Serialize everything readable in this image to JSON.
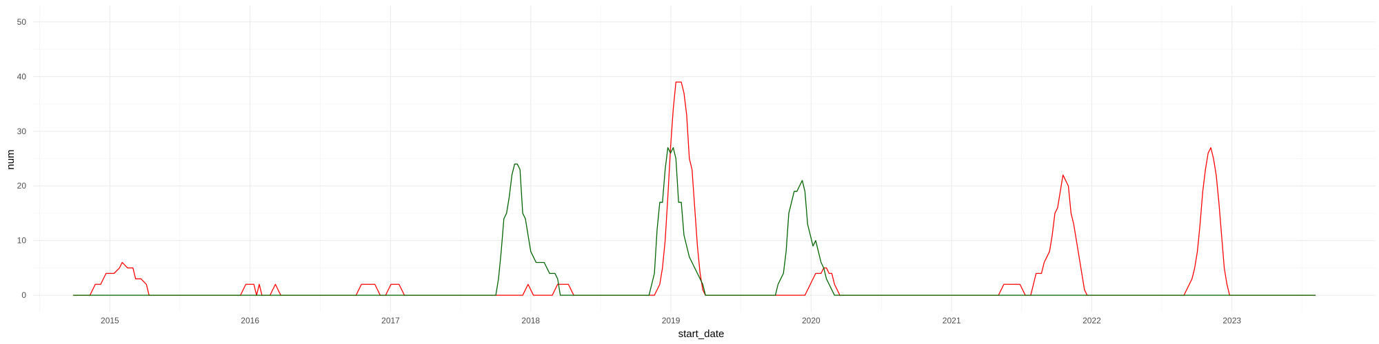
{
  "chart_data": {
    "type": "line",
    "title": "",
    "xlabel": "start_date",
    "ylabel": "num",
    "x_axis_type": "date",
    "xlim": [
      "2014-06-15",
      "2024-01-10"
    ],
    "ylim": [
      -3,
      53
    ],
    "x_ticks": [
      "2015",
      "2016",
      "2017",
      "2018",
      "2019",
      "2020",
      "2021",
      "2022",
      "2023"
    ],
    "y_ticks": [
      0,
      10,
      20,
      30,
      40,
      50
    ],
    "grid": true,
    "legend": "none",
    "series": [
      {
        "color": "#ff0000",
        "points": [
          [
            "2014-09-28",
            0
          ],
          [
            "2014-11-10",
            0
          ],
          [
            "2014-11-24",
            2
          ],
          [
            "2014-12-08",
            2
          ],
          [
            "2014-12-22",
            4
          ],
          [
            "2015-01-12",
            4
          ],
          [
            "2015-01-26",
            5
          ],
          [
            "2015-02-02",
            6
          ],
          [
            "2015-02-16",
            5
          ],
          [
            "2015-03-02",
            5
          ],
          [
            "2015-03-09",
            3
          ],
          [
            "2015-03-23",
            3
          ],
          [
            "2015-04-06",
            2
          ],
          [
            "2015-04-13",
            0
          ],
          [
            "2015-12-07",
            0
          ],
          [
            "2015-12-21",
            2
          ],
          [
            "2016-01-11",
            2
          ],
          [
            "2016-01-18",
            0
          ],
          [
            "2016-01-25",
            2
          ],
          [
            "2016-02-01",
            0
          ],
          [
            "2016-02-22",
            0
          ],
          [
            "2016-03-07",
            2
          ],
          [
            "2016-03-21",
            0
          ],
          [
            "2016-10-03",
            0
          ],
          [
            "2016-10-17",
            2
          ],
          [
            "2016-11-21",
            2
          ],
          [
            "2016-12-05",
            0
          ],
          [
            "2016-12-19",
            0
          ],
          [
            "2017-01-02",
            2
          ],
          [
            "2017-01-23",
            2
          ],
          [
            "2017-02-06",
            0
          ],
          [
            "2017-12-11",
            0
          ],
          [
            "2017-12-25",
            2
          ],
          [
            "2018-01-08",
            0
          ],
          [
            "2018-02-26",
            0
          ],
          [
            "2018-03-12",
            2
          ],
          [
            "2018-04-09",
            2
          ],
          [
            "2018-04-23",
            0
          ],
          [
            "2018-11-19",
            0
          ],
          [
            "2018-12-03",
            2
          ],
          [
            "2018-12-10",
            5
          ],
          [
            "2018-12-17",
            10
          ],
          [
            "2018-12-24",
            18
          ],
          [
            "2018-12-31",
            27
          ],
          [
            "2019-01-07",
            34
          ],
          [
            "2019-01-14",
            39
          ],
          [
            "2019-01-28",
            39
          ],
          [
            "2019-02-04",
            37
          ],
          [
            "2019-02-11",
            33
          ],
          [
            "2019-02-18",
            25
          ],
          [
            "2019-02-25",
            23
          ],
          [
            "2019-03-04",
            16
          ],
          [
            "2019-03-11",
            9
          ],
          [
            "2019-03-18",
            4
          ],
          [
            "2019-03-25",
            1
          ],
          [
            "2019-04-01",
            0
          ],
          [
            "2019-12-16",
            0
          ],
          [
            "2019-12-30",
            2
          ],
          [
            "2020-01-13",
            4
          ],
          [
            "2020-01-27",
            4
          ],
          [
            "2020-02-03",
            5
          ],
          [
            "2020-02-10",
            5
          ],
          [
            "2020-02-17",
            4
          ],
          [
            "2020-02-24",
            4
          ],
          [
            "2020-03-02",
            2
          ],
          [
            "2020-03-16",
            0
          ],
          [
            "2021-05-03",
            0
          ],
          [
            "2021-05-17",
            2
          ],
          [
            "2021-06-28",
            2
          ],
          [
            "2021-07-12",
            0
          ],
          [
            "2021-07-26",
            0
          ],
          [
            "2021-08-09",
            4
          ],
          [
            "2021-08-23",
            4
          ],
          [
            "2021-08-30",
            6
          ],
          [
            "2021-09-06",
            7
          ],
          [
            "2021-09-13",
            8
          ],
          [
            "2021-09-20",
            11
          ],
          [
            "2021-09-27",
            15
          ],
          [
            "2021-10-04",
            16
          ],
          [
            "2021-10-11",
            19
          ],
          [
            "2021-10-18",
            22
          ],
          [
            "2021-10-25",
            21
          ],
          [
            "2021-11-01",
            20
          ],
          [
            "2021-11-08",
            15
          ],
          [
            "2021-11-15",
            13
          ],
          [
            "2021-11-22",
            10
          ],
          [
            "2021-11-29",
            7
          ],
          [
            "2021-12-06",
            4
          ],
          [
            "2021-12-13",
            1
          ],
          [
            "2021-12-20",
            0
          ],
          [
            "2022-08-29",
            0
          ],
          [
            "2022-09-12",
            2
          ],
          [
            "2022-09-19",
            3
          ],
          [
            "2022-09-26",
            5
          ],
          [
            "2022-10-03",
            8
          ],
          [
            "2022-10-10",
            13
          ],
          [
            "2022-10-17",
            19
          ],
          [
            "2022-10-24",
            23
          ],
          [
            "2022-10-31",
            26
          ],
          [
            "2022-11-07",
            27
          ],
          [
            "2022-11-14",
            25
          ],
          [
            "2022-11-21",
            22
          ],
          [
            "2022-11-28",
            17
          ],
          [
            "2022-12-05",
            11
          ],
          [
            "2022-12-12",
            5
          ],
          [
            "2022-12-19",
            2
          ],
          [
            "2022-12-26",
            0
          ],
          [
            "2023-08-06",
            0
          ]
        ]
      },
      {
        "color": "#006400",
        "points": [
          [
            "2014-09-28",
            0
          ],
          [
            "2017-10-02",
            0
          ],
          [
            "2017-10-09",
            3
          ],
          [
            "2017-10-16",
            8
          ],
          [
            "2017-10-23",
            14
          ],
          [
            "2017-10-30",
            15
          ],
          [
            "2017-11-06",
            18
          ],
          [
            "2017-11-13",
            22
          ],
          [
            "2017-11-20",
            24
          ],
          [
            "2017-11-27",
            24
          ],
          [
            "2017-12-04",
            23
          ],
          [
            "2017-12-11",
            15
          ],
          [
            "2017-12-18",
            14
          ],
          [
            "2017-12-25",
            11
          ],
          [
            "2018-01-01",
            8
          ],
          [
            "2018-01-08",
            7
          ],
          [
            "2018-01-15",
            6
          ],
          [
            "2018-02-05",
            6
          ],
          [
            "2018-02-12",
            5
          ],
          [
            "2018-02-19",
            4
          ],
          [
            "2018-03-05",
            4
          ],
          [
            "2018-03-12",
            3
          ],
          [
            "2018-03-19",
            0
          ],
          [
            "2018-11-05",
            0
          ],
          [
            "2018-11-12",
            2
          ],
          [
            "2018-11-19",
            4
          ],
          [
            "2018-11-26",
            12
          ],
          [
            "2018-12-03",
            17
          ],
          [
            "2018-12-10",
            17
          ],
          [
            "2018-12-17",
            23
          ],
          [
            "2018-12-24",
            27
          ],
          [
            "2018-12-31",
            26
          ],
          [
            "2019-01-07",
            27
          ],
          [
            "2019-01-14",
            25
          ],
          [
            "2019-01-21",
            17
          ],
          [
            "2019-01-28",
            17
          ],
          [
            "2019-02-04",
            11
          ],
          [
            "2019-02-11",
            9
          ],
          [
            "2019-02-18",
            7
          ],
          [
            "2019-02-25",
            6
          ],
          [
            "2019-03-04",
            5
          ],
          [
            "2019-03-11",
            4
          ],
          [
            "2019-03-18",
            3
          ],
          [
            "2019-03-25",
            2
          ],
          [
            "2019-04-01",
            0
          ],
          [
            "2019-09-30",
            0
          ],
          [
            "2019-10-07",
            2
          ],
          [
            "2019-10-14",
            3
          ],
          [
            "2019-10-21",
            4
          ],
          [
            "2019-10-28",
            8
          ],
          [
            "2019-11-04",
            15
          ],
          [
            "2019-11-11",
            17
          ],
          [
            "2019-11-18",
            19
          ],
          [
            "2019-11-25",
            19
          ],
          [
            "2019-12-02",
            20
          ],
          [
            "2019-12-09",
            21
          ],
          [
            "2019-12-16",
            19
          ],
          [
            "2019-12-23",
            13
          ],
          [
            "2019-12-30",
            11
          ],
          [
            "2020-01-06",
            9
          ],
          [
            "2020-01-13",
            10
          ],
          [
            "2020-01-20",
            8
          ],
          [
            "2020-01-27",
            6
          ],
          [
            "2020-02-03",
            5
          ],
          [
            "2020-02-10",
            3
          ],
          [
            "2020-02-17",
            2
          ],
          [
            "2020-02-24",
            1
          ],
          [
            "2020-03-02",
            0
          ],
          [
            "2023-08-06",
            0
          ]
        ]
      }
    ]
  }
}
